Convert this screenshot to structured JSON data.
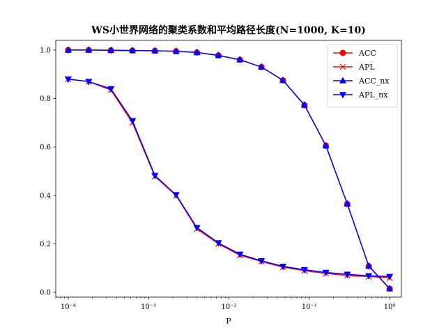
{
  "chart_data": {
    "type": "line",
    "title": "WS小世界网络的聚类系数和平均路径长度(N=1000, K=10)",
    "xlabel": "P",
    "ylabel": "",
    "x_scale": "log",
    "xlim": [
      7e-05,
      1.4
    ],
    "ylim": [
      -0.02,
      1.04
    ],
    "x_ticks": [
      {
        "value": 0.0001,
        "label": "10⁻⁴"
      },
      {
        "value": 0.001,
        "label": "10⁻³"
      },
      {
        "value": 0.01,
        "label": "10⁻²"
      },
      {
        "value": 0.1,
        "label": "10⁻¹"
      },
      {
        "value": 1,
        "label": "10⁰"
      }
    ],
    "y_ticks": [
      {
        "value": 0.0,
        "label": "0.0"
      },
      {
        "value": 0.2,
        "label": "0.2"
      },
      {
        "value": 0.4,
        "label": "0.4"
      },
      {
        "value": 0.6,
        "label": "0.6"
      },
      {
        "value": 0.8,
        "label": "0.8"
      },
      {
        "value": 1.0,
        "label": "1.0"
      }
    ],
    "x": [
      0.0001,
      0.00018,
      0.00034,
      0.00063,
      0.0012,
      0.0022,
      0.004,
      0.0074,
      0.0137,
      0.0254,
      0.047,
      0.087,
      0.161,
      0.297,
      0.55,
      1.0
    ],
    "series": [
      {
        "name": "ACC",
        "color": "#ff0000",
        "marker": "circle",
        "values": [
          1.0,
          1.0,
          0.999,
          0.998,
          0.997,
          0.995,
          0.99,
          0.978,
          0.96,
          0.93,
          0.875,
          0.773,
          0.605,
          0.365,
          0.108,
          0.015
        ]
      },
      {
        "name": "APL",
        "color": "#ff0000",
        "marker": "x",
        "values": [
          0.88,
          0.87,
          0.835,
          0.7,
          0.478,
          0.4,
          0.262,
          0.2,
          0.153,
          0.127,
          0.104,
          0.089,
          0.078,
          0.069,
          0.065,
          0.06
        ]
      },
      {
        "name": "ACC_nx",
        "color": "#0000ff",
        "marker": "triangle-up",
        "values": [
          1.0,
          1.0,
          0.999,
          0.998,
          0.997,
          0.995,
          0.99,
          0.978,
          0.96,
          0.93,
          0.875,
          0.773,
          0.605,
          0.365,
          0.108,
          0.015
        ]
      },
      {
        "name": "APL_nx",
        "color": "#0000ff",
        "marker": "triangle-down",
        "values": [
          0.88,
          0.87,
          0.84,
          0.708,
          0.482,
          0.402,
          0.267,
          0.204,
          0.157,
          0.13,
          0.107,
          0.093,
          0.082,
          0.074,
          0.068,
          0.065
        ]
      }
    ],
    "grid": false,
    "legend_position": "top-right"
  }
}
